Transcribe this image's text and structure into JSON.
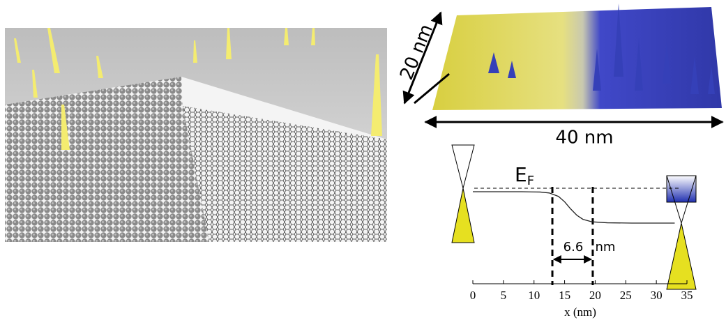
{
  "chart_data": {
    "type": "line",
    "scale_height_label": "20 nm",
    "scale_width_label": "40 nm",
    "fermi_label": "E",
    "fermi_label_sub": "F",
    "width_value": "6.6",
    "width_unit": "nm",
    "xlabel": "x (nm)",
    "xlim": [
      0,
      35
    ],
    "xticks": [
      0,
      5,
      10,
      15,
      20,
      25,
      30,
      35
    ],
    "markers": [
      13,
      19.6
    ],
    "x": [
      0,
      4,
      8,
      11,
      12.5,
      14,
      15,
      16,
      17,
      18,
      19.5,
      22,
      26,
      30,
      33
    ],
    "values": [
      1,
      1,
      1,
      0.99,
      0.96,
      0.85,
      0.68,
      0.45,
      0.25,
      0.12,
      0.04,
      0.01,
      0,
      0,
      0
    ],
    "color": "#222"
  }
}
